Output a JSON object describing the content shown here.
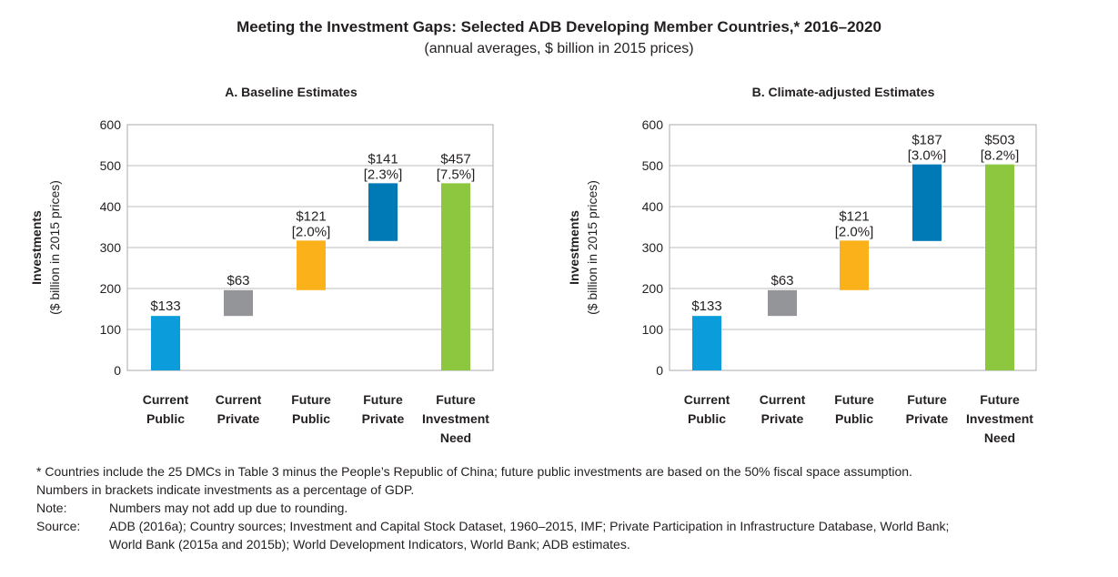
{
  "title": "Meeting the Investment Gaps: Selected ADB Developing Member Countries,* 2016–2020",
  "subtitle": "(annual averages, $ billion in 2015 prices)",
  "footnotes": {
    "asterisk": "* Countries include the 25 DMCs in Table 3 minus the People’s Republic of China; future public investments are based on the 50% fiscal space assumption.",
    "brackets": "Numbers in brackets indicate investments as a percentage of GDP.",
    "note_label": "Note:",
    "note_text": "Numbers may not add up due to rounding.",
    "source_label": "Source:",
    "source_text_1": "ADB (2016a); Country sources; Investment and Capital Stock Dataset, 1960–2015, IMF; Private Participation in Infrastructure Database, World Bank;",
    "source_text_2": "World Bank (2015a and 2015b); World Development Indicators, World Bank; ADB estimates."
  },
  "colors": {
    "current_public": "#0b9ddb",
    "current_private": "#939598",
    "future_public": "#fbb21a",
    "future_private": "#0079b7",
    "future_need": "#8dc63f"
  },
  "chart_data": [
    {
      "type": "bar",
      "subtype": "waterfall",
      "title": "A. Baseline Estimates",
      "ylabel": "Investments",
      "ylabel_sub": "($ billion in 2015 prices)",
      "ylim": [
        0,
        600
      ],
      "yticks": [
        "0",
        "100",
        "200",
        "300",
        "400",
        "500",
        "600"
      ],
      "grid": true,
      "categories": [
        [
          "Current",
          "Public"
        ],
        [
          "Current",
          "Private"
        ],
        [
          "Future",
          "Public"
        ],
        [
          "Future",
          "Private"
        ],
        [
          "Future",
          "Investment",
          "Need"
        ]
      ],
      "bars": [
        {
          "base": 0,
          "top": 133,
          "label": "$133",
          "pct": "",
          "color_key": "current_public"
        },
        {
          "base": 133,
          "top": 196,
          "label": "$63",
          "pct": "",
          "color_key": "current_private"
        },
        {
          "base": 196,
          "top": 317,
          "label": "$121",
          "pct": "[2.0%]",
          "color_key": "future_public"
        },
        {
          "base": 316,
          "top": 457,
          "label": "$141",
          "pct": "[2.3%]",
          "color_key": "future_private"
        },
        {
          "base": 0,
          "top": 457,
          "label": "$457",
          "pct": "[7.5%]",
          "color_key": "future_need"
        }
      ]
    },
    {
      "type": "bar",
      "subtype": "waterfall",
      "title": "B. Climate-adjusted Estimates",
      "ylabel": "Investments",
      "ylabel_sub": "($ billion in 2015 prices)",
      "ylim": [
        0,
        600
      ],
      "yticks": [
        "0",
        "100",
        "200",
        "300",
        "400",
        "500",
        "600"
      ],
      "grid": true,
      "categories": [
        [
          "Current",
          "Public"
        ],
        [
          "Current",
          "Private"
        ],
        [
          "Future",
          "Public"
        ],
        [
          "Future",
          "Private"
        ],
        [
          "Future",
          "Investment",
          "Need"
        ]
      ],
      "bars": [
        {
          "base": 0,
          "top": 133,
          "label": "$133",
          "pct": "",
          "color_key": "current_public"
        },
        {
          "base": 133,
          "top": 196,
          "label": "$63",
          "pct": "",
          "color_key": "current_private"
        },
        {
          "base": 196,
          "top": 317,
          "label": "$121",
          "pct": "[2.0%]",
          "color_key": "future_public"
        },
        {
          "base": 316,
          "top": 503,
          "label": "$187",
          "pct": "[3.0%]",
          "color_key": "future_private"
        },
        {
          "base": 0,
          "top": 503,
          "label": "$503",
          "pct": "[8.2%]",
          "color_key": "future_need"
        }
      ]
    }
  ]
}
